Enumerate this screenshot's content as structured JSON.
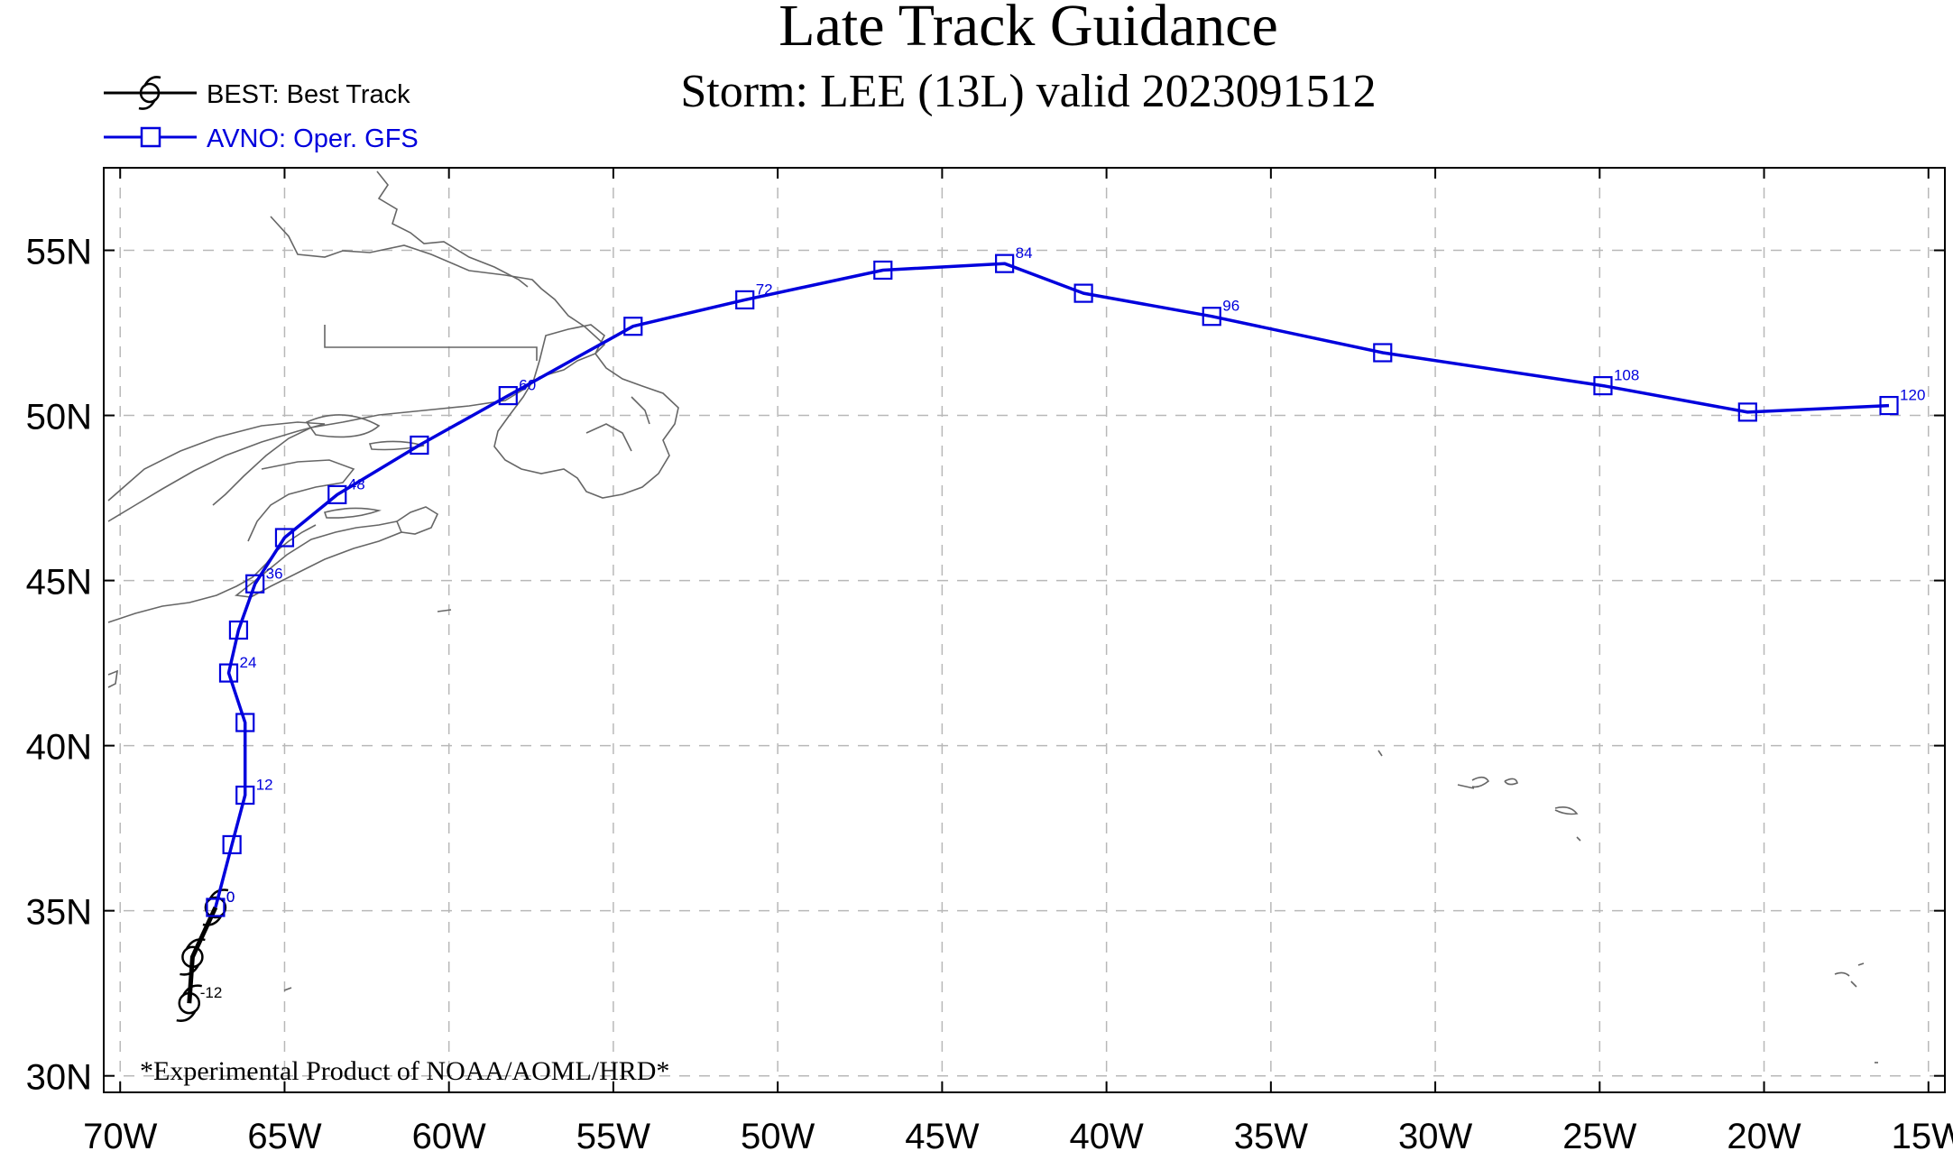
{
  "title": "Late Track Guidance",
  "subtitle": "Storm: LEE (13L) valid 2023091512",
  "footnote": "*Experimental Product of NOAA/AOML/HRD*",
  "colors": {
    "best": "#000000",
    "avno": "#0000dd",
    "grid": "#b8b8b8",
    "coast": "#666666"
  },
  "legend": [
    {
      "model": "BEST",
      "label": "BEST: Best Track",
      "symbol": "hurricane-icon",
      "color": "#000000"
    },
    {
      "model": "AVNO",
      "label": "AVNO: Oper. GFS",
      "symbol": "square-marker-icon",
      "color": "#0000dd"
    }
  ],
  "map": {
    "lon_range": [
      -70.5,
      -14.5
    ],
    "lat_range": [
      29.5,
      57.5
    ],
    "x_ticks": [
      {
        "value": -70,
        "label": "70W"
      },
      {
        "value": -65,
        "label": "65W"
      },
      {
        "value": -60,
        "label": "60W"
      },
      {
        "value": -55,
        "label": "55W"
      },
      {
        "value": -50,
        "label": "50W"
      },
      {
        "value": -45,
        "label": "45W"
      },
      {
        "value": -40,
        "label": "40W"
      },
      {
        "value": -35,
        "label": "35W"
      },
      {
        "value": -30,
        "label": "30W"
      },
      {
        "value": -25,
        "label": "25W"
      },
      {
        "value": -20,
        "label": "20W"
      },
      {
        "value": -15,
        "label": "15W"
      }
    ],
    "y_ticks": [
      {
        "value": 30,
        "label": "30N"
      },
      {
        "value": 35,
        "label": "35N"
      },
      {
        "value": 40,
        "label": "40N"
      },
      {
        "value": 45,
        "label": "45N"
      },
      {
        "value": 50,
        "label": "50N"
      },
      {
        "value": 55,
        "label": "55N"
      }
    ],
    "grid": "dashed"
  },
  "tracks": [
    {
      "name": "BEST",
      "points": [
        {
          "lon": -67.9,
          "lat": 32.2,
          "hour": "-12"
        },
        {
          "lon": -67.8,
          "lat": 33.6,
          "hour": ""
        },
        {
          "lon": -67.1,
          "lat": 35.1,
          "hour": "0"
        }
      ]
    },
    {
      "name": "AVNO",
      "points": [
        {
          "lon": -67.1,
          "lat": 35.1,
          "hour": "0"
        },
        {
          "lon": -66.6,
          "lat": 37.0,
          "hour": ""
        },
        {
          "lon": -66.2,
          "lat": 38.5,
          "hour": "12"
        },
        {
          "lon": -66.2,
          "lat": 40.7,
          "hour": ""
        },
        {
          "lon": -66.7,
          "lat": 42.2,
          "hour": "24"
        },
        {
          "lon": -66.4,
          "lat": 43.5,
          "hour": ""
        },
        {
          "lon": -65.9,
          "lat": 44.9,
          "hour": "36"
        },
        {
          "lon": -65.0,
          "lat": 46.3,
          "hour": ""
        },
        {
          "lon": -63.4,
          "lat": 47.6,
          "hour": "48"
        },
        {
          "lon": -60.9,
          "lat": 49.1,
          "hour": ""
        },
        {
          "lon": -58.2,
          "lat": 50.6,
          "hour": "60"
        },
        {
          "lon": -54.4,
          "lat": 52.7,
          "hour": ""
        },
        {
          "lon": -51.0,
          "lat": 53.5,
          "hour": "72"
        },
        {
          "lon": -46.8,
          "lat": 54.4,
          "hour": ""
        },
        {
          "lon": -43.1,
          "lat": 54.6,
          "hour": "84"
        },
        {
          "lon": -40.7,
          "lat": 53.7,
          "hour": ""
        },
        {
          "lon": -36.8,
          "lat": 53.0,
          "hour": "96"
        },
        {
          "lon": -31.6,
          "lat": 51.9,
          "hour": ""
        },
        {
          "lon": -24.9,
          "lat": 50.9,
          "hour": "108"
        },
        {
          "lon": -20.5,
          "lat": 50.1,
          "hour": ""
        },
        {
          "lon": -16.2,
          "lat": 50.3,
          "hour": "120"
        }
      ]
    }
  ]
}
